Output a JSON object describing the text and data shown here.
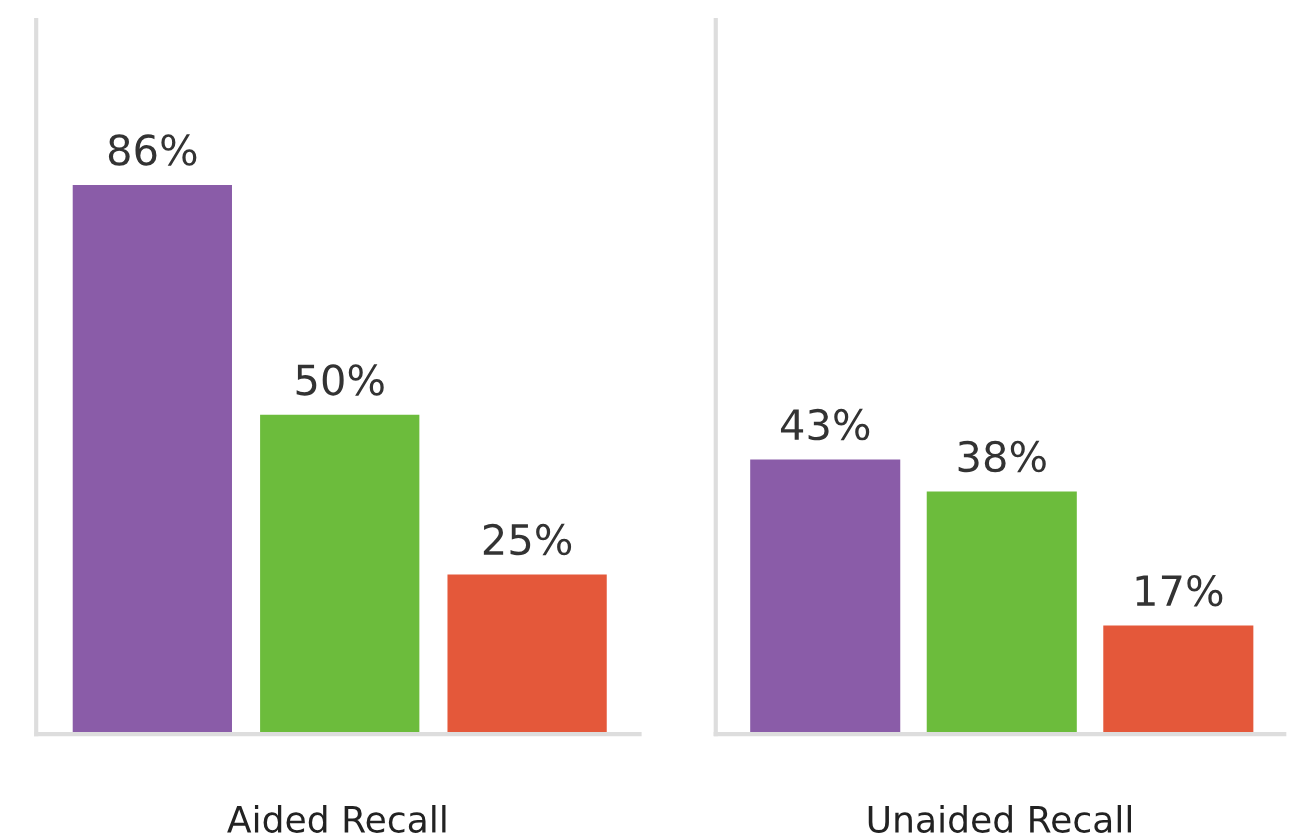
{
  "chart_data": [
    {
      "type": "bar",
      "xlabel": "Aided Recall",
      "categories": [
        null,
        null,
        null
      ],
      "values": [
        86,
        50,
        25
      ],
      "colors": [
        "#8a5ca8",
        "#6cbc3c",
        "#e4583a"
      ],
      "data_labels": true,
      "value_labels": [
        "86%",
        "50%",
        "25%"
      ],
      "grid": false,
      "legend": false
    },
    {
      "type": "bar",
      "xlabel": "Unaided Recall",
      "categories": [
        null,
        null,
        null
      ],
      "values": [
        43,
        38,
        17
      ],
      "colors": [
        "#8a5ca8",
        "#6cbc3c",
        "#e4583a"
      ],
      "data_labels": true,
      "value_labels": [
        "43%",
        "38%",
        "17%"
      ],
      "grid": false,
      "legend": false
    }
  ]
}
